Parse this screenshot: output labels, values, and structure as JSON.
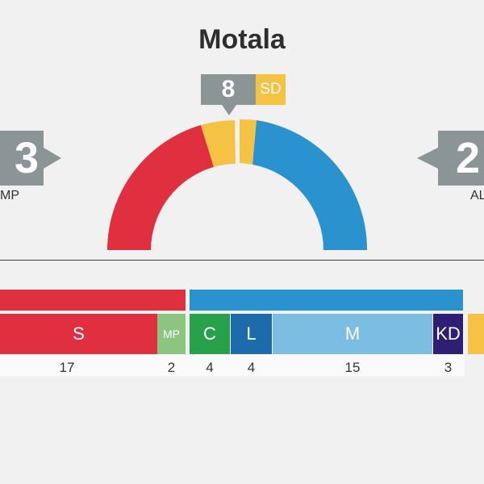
{
  "title": "Motala",
  "center": {
    "seats": "8",
    "party": "SD"
  },
  "left": {
    "number": "3",
    "label": "MP"
  },
  "right": {
    "number": "2",
    "label": "AL"
  },
  "colors": {
    "red": "#e0303f",
    "yellow": "#f6c244",
    "blue": "#2a93cf",
    "gray": "#8b9595",
    "S": "#e0303f",
    "MP": "#8cc57f",
    "C": "#27a24b",
    "L": "#1d6bab",
    "M": "#7cbde2",
    "KD": "#2e1f74"
  },
  "chart_data": {
    "type": "bar",
    "title": "Motala",
    "parties": [
      {
        "name": "S",
        "seats": 17,
        "color": "#e0303f"
      },
      {
        "name": "MP",
        "seats": 2,
        "color": "#8cc57f"
      },
      {
        "name": "C",
        "seats": 4,
        "color": "#27a24b"
      },
      {
        "name": "L",
        "seats": 4,
        "color": "#1d6bab"
      },
      {
        "name": "M",
        "seats": 15,
        "color": "#7cbde2"
      },
      {
        "name": "KD",
        "seats": 3,
        "color": "#2e1f74"
      }
    ]
  }
}
